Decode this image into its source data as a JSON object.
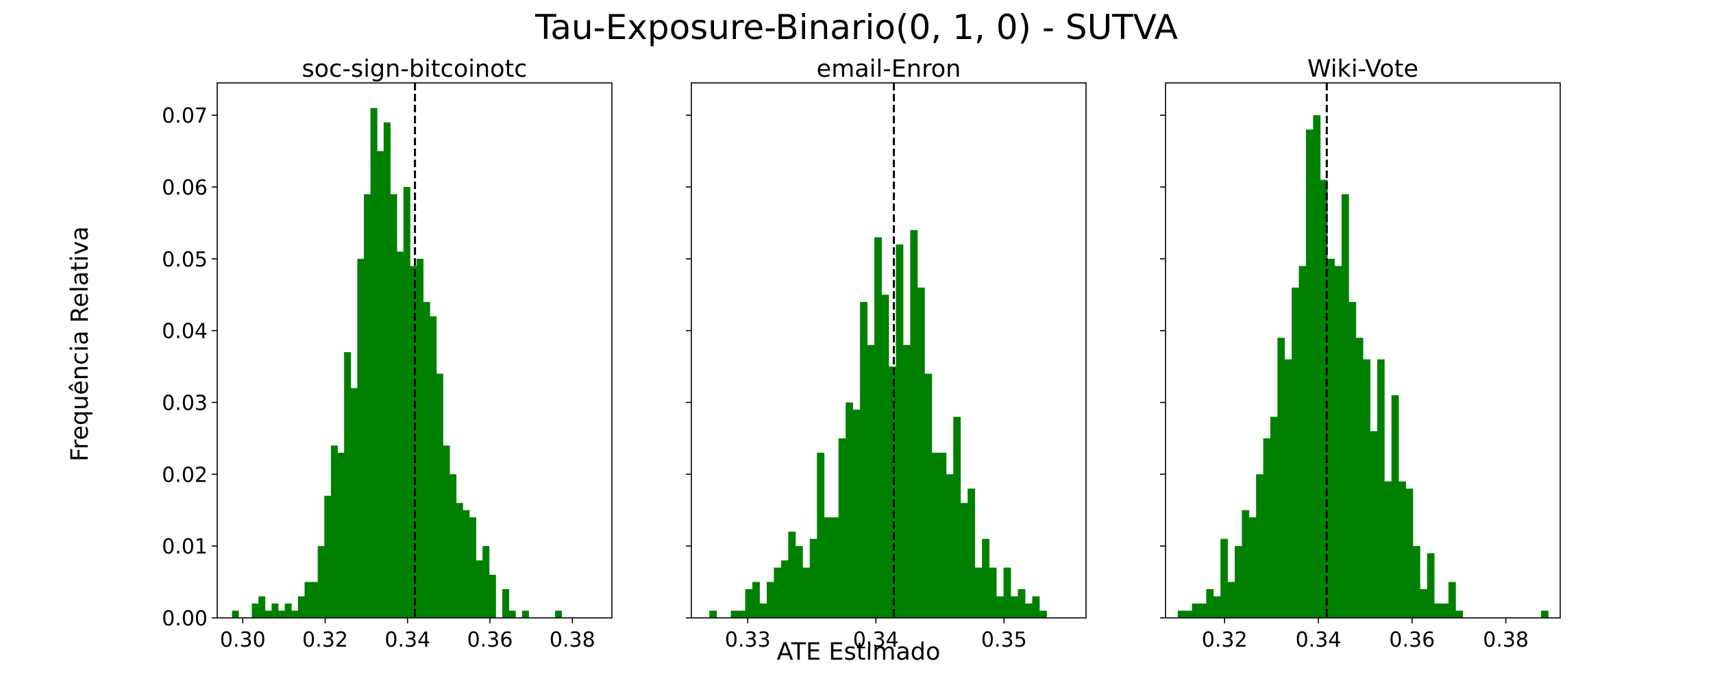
{
  "figure": {
    "suptitle": "Tau-Exposure-Binario(0, 1, 0) - SUTVA",
    "ylabel": "Frequência Relativa",
    "xlabel": "ATE Estimado"
  },
  "colors": {
    "bar": "#008000",
    "reference_line": "#000000",
    "frame": "#000000"
  },
  "chart_data": [
    {
      "type": "bar",
      "title": "soc-sign-bitcoinotc",
      "xlabel": "",
      "ylabel": "Frequência Relativa",
      "xlim": [
        0.2938,
        0.3896
      ],
      "ylim": [
        0,
        0.0745
      ],
      "xticks": [
        0.3,
        0.32,
        0.34,
        0.36,
        0.38
      ],
      "xtick_labels": [
        "0.30",
        "0.32",
        "0.34",
        "0.36",
        "0.38"
      ],
      "yticks": [
        0.0,
        0.01,
        0.02,
        0.03,
        0.04,
        0.05,
        0.06,
        0.07
      ],
      "ytick_labels": [
        "0.00",
        "0.01",
        "0.02",
        "0.03",
        "0.04",
        "0.05",
        "0.06",
        "0.07"
      ],
      "reference_line_x": 0.3418,
      "bin_start": 0.2974,
      "bin_width": 0.0016,
      "values": [
        0.001,
        0.0,
        0.0,
        0.002,
        0.003,
        0.001,
        0.002,
        0.001,
        0.002,
        0.001,
        0.003,
        0.005,
        0.005,
        0.01,
        0.017,
        0.024,
        0.023,
        0.037,
        0.032,
        0.05,
        0.059,
        0.071,
        0.065,
        0.069,
        0.059,
        0.051,
        0.06,
        0.049,
        0.05,
        0.044,
        0.042,
        0.034,
        0.024,
        0.02,
        0.016,
        0.015,
        0.014,
        0.008,
        0.01,
        0.006,
        0.0,
        0.004,
        0.001,
        0.0,
        0.001,
        0.0,
        0.0,
        0.0,
        0.0,
        0.001
      ],
      "grid": false,
      "legend": "none"
    },
    {
      "type": "bar",
      "title": "email-Enron",
      "xlabel": "ATE Estimado",
      "ylabel": "",
      "xlim": [
        0.3256,
        0.3564
      ],
      "ylim": [
        0,
        0.0745
      ],
      "xticks": [
        0.33,
        0.34,
        0.35
      ],
      "xtick_labels": [
        "0.33",
        "0.34",
        "0.35"
      ],
      "yticks": [
        0.0,
        0.01,
        0.02,
        0.03,
        0.04,
        0.05,
        0.06,
        0.07
      ],
      "ytick_labels": [],
      "reference_line_x": 0.3414,
      "bin_start": 0.327,
      "bin_width": 0.00056,
      "values": [
        0.001,
        0.0,
        0.0,
        0.001,
        0.001,
        0.004,
        0.005,
        0.002,
        0.005,
        0.007,
        0.008,
        0.012,
        0.01,
        0.007,
        0.011,
        0.023,
        0.014,
        0.014,
        0.025,
        0.03,
        0.029,
        0.044,
        0.038,
        0.053,
        0.045,
        0.035,
        0.052,
        0.038,
        0.054,
        0.046,
        0.034,
        0.023,
        0.023,
        0.02,
        0.028,
        0.016,
        0.018,
        0.007,
        0.011,
        0.007,
        0.003,
        0.007,
        0.003,
        0.004,
        0.002,
        0.003,
        0.001
      ],
      "grid": false,
      "legend": "none"
    },
    {
      "type": "bar",
      "title": "Wiki-Vote",
      "xlabel": "",
      "ylabel": "",
      "xlim": [
        0.3074,
        0.3916
      ],
      "ylim": [
        0,
        0.0745
      ],
      "xticks": [
        0.32,
        0.34,
        0.36,
        0.38
      ],
      "xtick_labels": [
        "0.32",
        "0.34",
        "0.36",
        "0.38"
      ],
      "yticks": [
        0.0,
        0.01,
        0.02,
        0.03,
        0.04,
        0.05,
        0.06,
        0.07
      ],
      "ytick_labels": [],
      "reference_line_x": 0.3418,
      "bin_start": 0.31,
      "bin_width": 0.00152,
      "values": [
        0.001,
        0.001,
        0.002,
        0.002,
        0.004,
        0.003,
        0.011,
        0.005,
        0.01,
        0.015,
        0.014,
        0.02,
        0.025,
        0.028,
        0.039,
        0.036,
        0.046,
        0.049,
        0.068,
        0.07,
        0.061,
        0.05,
        0.049,
        0.059,
        0.044,
        0.039,
        0.036,
        0.026,
        0.036,
        0.019,
        0.031,
        0.019,
        0.018,
        0.01,
        0.004,
        0.009,
        0.002,
        0.002,
        0.005,
        0.001,
        0.0,
        0.0,
        0.0,
        0.0,
        0.0,
        0.0,
        0.0,
        0.0,
        0.0,
        0.0,
        0.0,
        0.001
      ],
      "grid": false,
      "legend": "none"
    }
  ]
}
